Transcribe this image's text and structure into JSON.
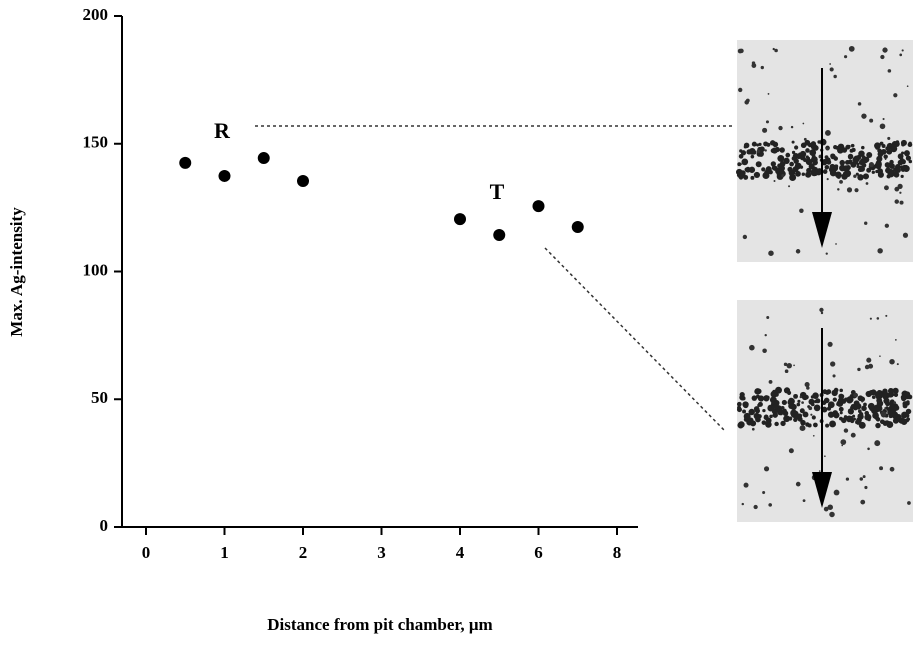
{
  "chart_data": {
    "type": "scatter",
    "y_label": "Max. Ag-intensity",
    "x_label": "Distance from pit chamber,    μm",
    "x": [
      0.5,
      1,
      1.5,
      2,
      4,
      5,
      6,
      7
    ],
    "values": [
      142.5,
      137.4,
      144.4,
      135.4,
      120.5,
      114.3,
      125.6,
      117.4
    ],
    "color": "#000000",
    "xlim": [
      -0.3,
      8.54
    ],
    "xticks": [
      0,
      1,
      2,
      3,
      4,
      6,
      8
    ],
    "ylim": [
      0,
      200
    ],
    "yticks": [
      0,
      50,
      100,
      150,
      200
    ],
    "annotations": [
      "R",
      "T"
    ]
  }
}
